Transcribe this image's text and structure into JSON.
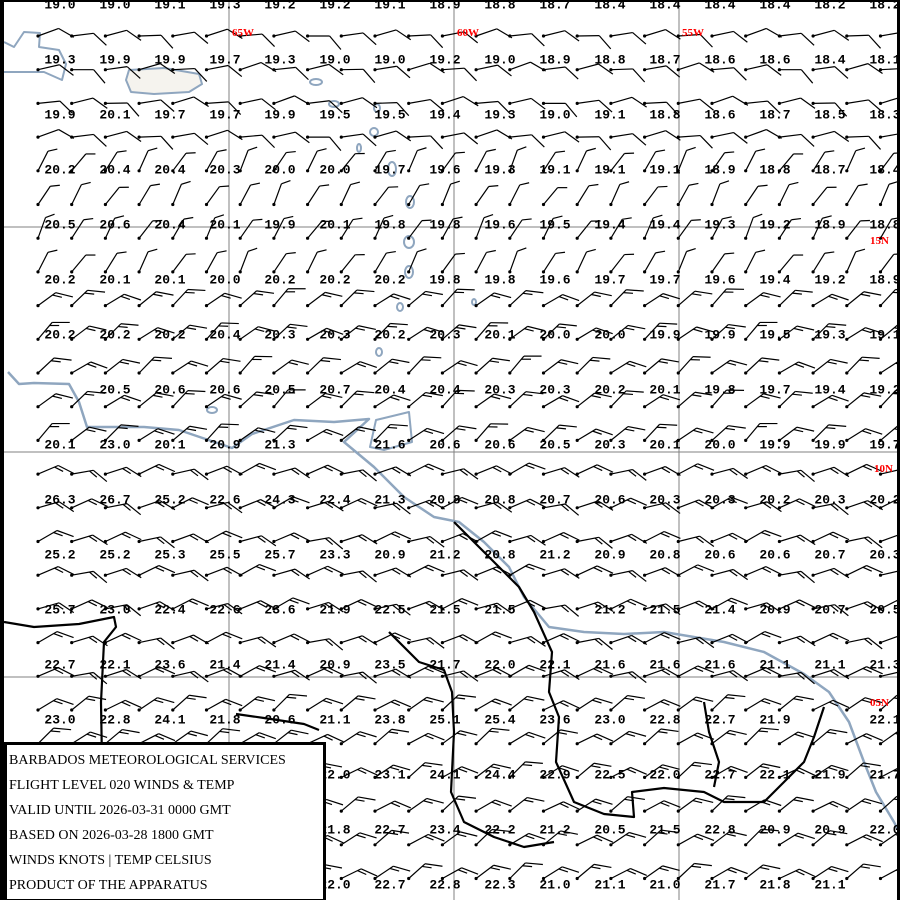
{
  "info": {
    "lines": [
      "BARBADOS METEOROLOGICAL SERVICES",
      "FLIGHT LEVEL 020 WINDS & TEMP",
      "VALID UNTIL 2026-03-31 0000 GMT",
      "BASED ON 2026-03-28 1800 GMT",
      "WINDS KNOTS | TEMP CELSIUS",
      "PRODUCT OF THE APPARATUS"
    ]
  },
  "graticule": {
    "longitudes": [
      "65W",
      "60W",
      "55W"
    ],
    "latitudes": [
      "15N",
      "10N",
      "05N"
    ],
    "label_color": "#ff0000",
    "line_color": "#808080"
  },
  "colors": {
    "coast": "#8fa6bf",
    "border": "#000000",
    "barb": "#000000"
  },
  "temps": [
    [
      "19.0",
      "19.0",
      "19.1",
      "19.3",
      "19.2",
      "19.2",
      "19.1",
      "18.9",
      "18.8",
      "18.7",
      "18.4",
      "18.4",
      "18.4",
      "18.4",
      "18.2",
      "18.2"
    ],
    [
      "19.3",
      "19.9",
      "19.9",
      "19.7",
      "19.3",
      "19.0",
      "19.0",
      "19.2",
      "19.0",
      "18.9",
      "18.8",
      "18.7",
      "18.6",
      "18.6",
      "18.4",
      "18.1"
    ],
    [
      "19.9",
      "20.1",
      "19.7",
      "19.7",
      "19.9",
      "19.5",
      "19.5",
      "19.4",
      "19.3",
      "19.0",
      "19.1",
      "18.8",
      "18.6",
      "18.7",
      "18.5",
      "18.3"
    ],
    [
      "20.2",
      "20.4",
      "20.4",
      "20.3",
      "20.0",
      "20.0",
      "19.7",
      "19.6",
      "19.3",
      "19.1",
      "19.1",
      "19.1",
      "18.9",
      "18.8",
      "18.7",
      "18.4"
    ],
    [
      "20.5",
      "20.6",
      "20.4",
      "20.1",
      "19.9",
      "20.1",
      "19.8",
      "19.8",
      "19.6",
      "19.5",
      "19.4",
      "19.4",
      "19.3",
      "19.2",
      "18.9",
      "18.8"
    ],
    [
      "20.2",
      "20.1",
      "20.1",
      "20.0",
      "20.2",
      "20.2",
      "20.2",
      "19.8",
      "19.8",
      "19.6",
      "19.7",
      "19.7",
      "19.6",
      "19.4",
      "19.2",
      "18.9"
    ],
    [
      "20.2",
      "20.2",
      "20.2",
      "20.4",
      "20.3",
      "20.3",
      "20.2",
      "20.3",
      "20.1",
      "20.0",
      "20.0",
      "19.9",
      "19.9",
      "19.5",
      "19.3",
      "19.1"
    ],
    [
      "",
      "20.5",
      "20.6",
      "20.6",
      "20.5",
      "20.7",
      "20.4",
      "20.4",
      "20.3",
      "20.3",
      "20.2",
      "20.1",
      "19.8",
      "19.7",
      "19.4",
      "19.2"
    ],
    [
      "20.1",
      "23.0",
      "20.1",
      "20.9",
      "21.3",
      "",
      "21.6",
      "20.6",
      "20.6",
      "20.5",
      "20.3",
      "20.1",
      "20.0",
      "19.9",
      "19.9",
      "19.7"
    ],
    [
      "26.3",
      "26.7",
      "25.2",
      "22.6",
      "24.3",
      "22.4",
      "21.3",
      "20.8",
      "20.8",
      "20.7",
      "20.6",
      "20.3",
      "20.3",
      "20.2",
      "20.3",
      "20.2"
    ],
    [
      "25.2",
      "25.2",
      "25.3",
      "25.5",
      "25.7",
      "23.3",
      "20.9",
      "21.2",
      "20.8",
      "21.2",
      "20.9",
      "20.8",
      "20.6",
      "20.6",
      "20.7",
      "20.3"
    ],
    [
      "25.7",
      "23.0",
      "22.4",
      "22.6",
      "23.6",
      "21.9",
      "22.5",
      "21.5",
      "21.5",
      "",
      "21.2",
      "21.5",
      "21.4",
      "20.9",
      "20.7",
      "20.5"
    ],
    [
      "22.7",
      "22.1",
      "23.6",
      "21.4",
      "21.4",
      "20.9",
      "23.5",
      "21.7",
      "22.0",
      "22.1",
      "21.6",
      "21.6",
      "21.6",
      "21.1",
      "21.1",
      "21.3"
    ],
    [
      "23.0",
      "22.8",
      "24.1",
      "21.8",
      "20.6",
      "21.1",
      "23.8",
      "25.1",
      "25.4",
      "23.6",
      "23.0",
      "22.8",
      "22.7",
      "21.9",
      "",
      "22.1"
    ],
    [
      "",
      "",
      "",
      "",
      "",
      "22.0",
      "23.1",
      "24.1",
      "24.4",
      "22.9",
      "22.5",
      "22.0",
      "22.7",
      "22.1",
      "21.9",
      "21.7"
    ],
    [
      "",
      "",
      "",
      "",
      "",
      "21.8",
      "22.7",
      "23.4",
      "22.2",
      "21.2",
      "20.5",
      "21.5",
      "22.8",
      "20.9",
      "20.9",
      "22.0"
    ],
    [
      "",
      "",
      "",
      "",
      "",
      "22.0",
      "22.7",
      "22.8",
      "22.3",
      "21.0",
      "21.1",
      "21.0",
      "21.7",
      "21.8",
      "21.1",
      ""
    ]
  ],
  "wind_bands": [
    {
      "rows": [
        0,
        3
      ],
      "dir": 80,
      "kt": 10
    },
    {
      "rows": [
        4,
        7
      ],
      "dir": 30,
      "kt": 5
    },
    {
      "rows": [
        8,
        12
      ],
      "dir": 50,
      "kt": 15
    },
    {
      "rows": [
        13,
        19
      ],
      "dir": 70,
      "kt": 15
    },
    {
      "rows": [
        20,
        25
      ],
      "dir": 55,
      "kt": 15
    }
  ]
}
